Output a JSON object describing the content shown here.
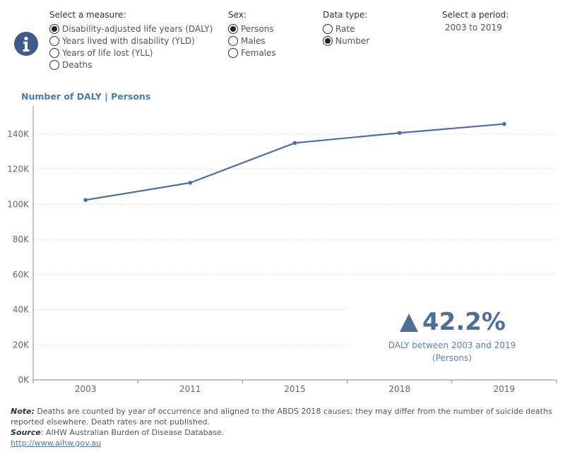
{
  "controls": {
    "measure": {
      "title": "Select a measure:",
      "options": [
        {
          "label": "Disability-adjusted life years (DALY)",
          "checked": true
        },
        {
          "label": "Years lived with disability (YLD)",
          "checked": false
        },
        {
          "label": "Years of life lost (YLL)",
          "checked": false
        },
        {
          "label": "Deaths",
          "checked": false
        }
      ]
    },
    "sex": {
      "title": "Sex:",
      "options": [
        {
          "label": "Persons",
          "checked": true
        },
        {
          "label": "Males",
          "checked": false
        },
        {
          "label": "Females",
          "checked": false
        }
      ]
    },
    "data_type": {
      "title": "Data type:",
      "options": [
        {
          "label": "Rate",
          "checked": false
        },
        {
          "label": "Number",
          "checked": true
        }
      ]
    },
    "period": {
      "title": "Select a period:",
      "value": "2003 to 2019"
    }
  },
  "kpi": {
    "value": "42.2%",
    "caption_line1": "DALY between 2003 and 2019",
    "caption_line2": "(Persons)"
  },
  "footer": {
    "note_label": "Note:",
    "note_text": " Deaths are counted by year of occurrence and aligned to the ABDS 2018 causes; they may differ from the number of suicide deaths reported elsewhere. Death rates are not published.",
    "source_label": "Source",
    "source_text": ": AIHW Australian Burden of Disease Database.",
    "link": "http://www.aihw.gov.au"
  },
  "colors": {
    "line": "#4e6e9e",
    "accent": "#4e79a7",
    "icon_bg": "#3e5b8c"
  },
  "chart_data": {
    "type": "line",
    "title": "Number of DALY | Persons",
    "categories": [
      "2003",
      "2011",
      "2015",
      "2018",
      "2019"
    ],
    "series": [
      {
        "values": [
          102500,
          112300,
          135000,
          140700,
          145800
        ]
      }
    ],
    "ylim": [
      0,
      140000
    ],
    "yticks": [
      0,
      20000,
      40000,
      60000,
      80000,
      100000,
      120000,
      140000
    ],
    "ytick_labels": [
      "0K",
      "20K",
      "40K",
      "60K",
      "80K",
      "100K",
      "120K",
      "140K"
    ],
    "grid": true
  }
}
